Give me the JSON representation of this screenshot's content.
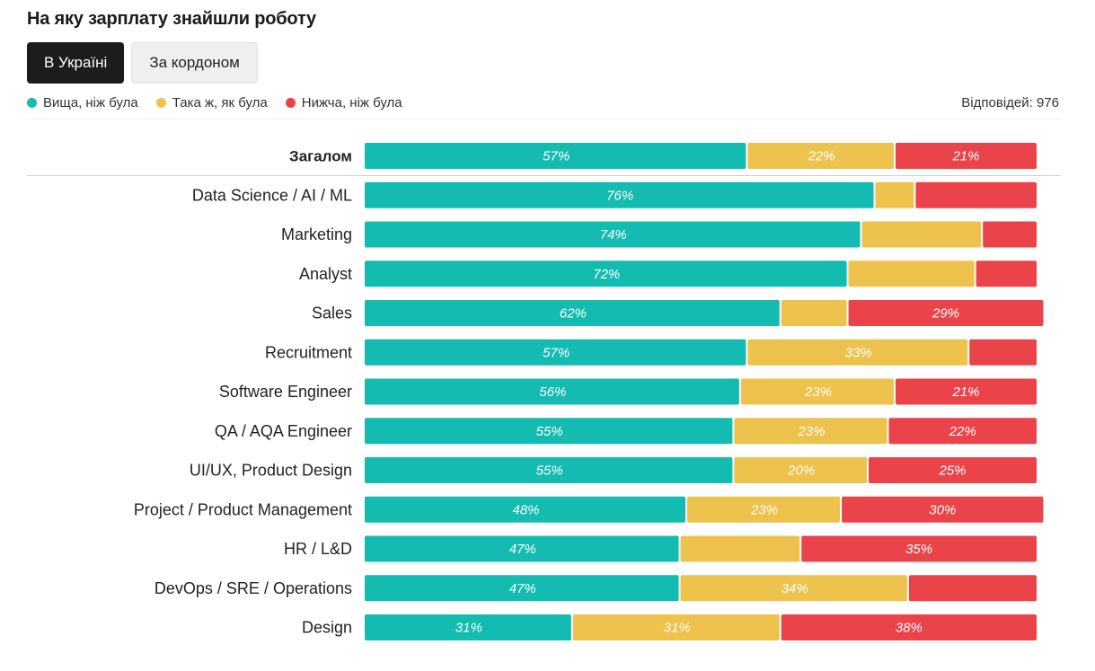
{
  "title": "На яку зарплату знайшли роботу",
  "tabs": [
    {
      "label": "В Україні",
      "active": true
    },
    {
      "label": "За кордоном",
      "active": false
    }
  ],
  "legend": [
    {
      "label": "Вища, ніж була",
      "color": "#14bbb1"
    },
    {
      "label": "Така ж, як була",
      "color": "#edc24d"
    },
    {
      "label": "Нижча, ніж була",
      "color": "#ea444a"
    }
  ],
  "responses": "Відповідей: 976",
  "chart_data": {
    "type": "bar",
    "orientation": "horizontal",
    "stacked": true,
    "normalized": true,
    "categories": [
      "Загалом",
      "Data Science / AI / ML",
      "Marketing",
      "Analyst",
      "Sales",
      "Recruitment",
      "Software Engineer",
      "QA / AQA Engineer",
      "UI/UX, Product Design",
      "Project / Product Management",
      "HR / L&D",
      "DevOps / SRE / Operations",
      "Design"
    ],
    "series": [
      {
        "name": "Вища, ніж була",
        "color": "#14bbb1",
        "values": [
          57,
          76,
          74,
          72,
          62,
          57,
          56,
          55,
          55,
          48,
          47,
          47,
          31
        ],
        "labels": [
          "57%",
          "76%",
          "74%",
          "72%",
          "62%",
          "57%",
          "56%",
          "55%",
          "55%",
          "48%",
          "47%",
          "47%",
          "31%"
        ]
      },
      {
        "name": "Така ж, як була",
        "color": "#edc24d",
        "values": [
          22,
          6,
          18,
          19,
          10,
          33,
          23,
          23,
          20,
          23,
          18,
          34,
          31
        ],
        "labels": [
          "22%",
          "",
          "",
          "",
          "",
          "33%",
          "23%",
          "23%",
          "20%",
          "23%",
          "",
          "34%",
          "31%"
        ]
      },
      {
        "name": "Нижча, ніж була",
        "color": "#ea444a",
        "values": [
          21,
          18,
          8,
          9,
          29,
          10,
          21,
          22,
          25,
          30,
          35,
          19,
          38
        ],
        "labels": [
          "21%",
          "",
          "",
          "",
          "29%",
          "",
          "21%",
          "22%",
          "25%",
          "30%",
          "35%",
          "",
          "38%"
        ]
      }
    ],
    "xlim": [
      0,
      100
    ]
  }
}
